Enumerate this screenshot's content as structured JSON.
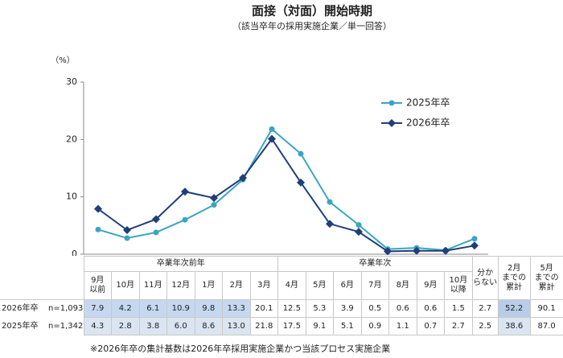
{
  "chart_data": {
    "type": "line",
    "title": "面接（対面）開始時期",
    "subtitle": "（該当卒年の採用実施企業／単一回答）",
    "y_unit": "（%）",
    "ylim": [
      0,
      30
    ],
    "yticks": [
      0,
      10,
      20,
      30
    ],
    "legend": "upper right",
    "groups": [
      {
        "label": "卒業年次前年",
        "categories": [
          "9月\n以前",
          "10月",
          "11月",
          "12月",
          "1月",
          "2月",
          "3月"
        ]
      },
      {
        "label": "卒業年次",
        "categories": [
          "4月",
          "5月",
          "6月",
          "7月",
          "8月",
          "9月",
          "10月\n以降"
        ]
      }
    ],
    "extra_categories": [
      "分か\nらない",
      "2月\nまでの\n累計",
      "5月\nまでの\n累計"
    ],
    "series": [
      {
        "name": "2025年卒",
        "n": "n=1,342",
        "color": "#3aa6c0",
        "marker": "circle",
        "values": [
          4.3,
          2.8,
          3.8,
          6.0,
          8.6,
          13.0,
          21.8,
          17.5,
          9.1,
          5.1,
          0.9,
          1.1,
          0.7,
          2.7
        ],
        "value_labels": [
          "4.3",
          "2.8",
          "3.8",
          "6.0",
          "8.6",
          "13.0",
          "21.8",
          "17.5",
          "9.1",
          "5.1",
          "0.9",
          "1.1",
          "0.7",
          "2.7"
        ],
        "extra_values": [
          2.5,
          38.6,
          87.0
        ],
        "extra_labels": [
          "2.5",
          "38.6",
          "87.0"
        ]
      },
      {
        "name": "2026年卒",
        "n": "n=1,093",
        "color": "#1f3f7a",
        "marker": "diamond",
        "values": [
          7.9,
          4.2,
          6.1,
          10.9,
          9.8,
          13.3,
          20.1,
          12.5,
          5.3,
          3.9,
          0.5,
          0.6,
          0.6,
          1.5
        ],
        "value_labels": [
          "7.9",
          "4.2",
          "6.1",
          "10.9",
          "9.8",
          "13.3",
          "20.1",
          "12.5",
          "5.3",
          "3.9",
          "0.5",
          "0.6",
          "0.6",
          "1.5"
        ],
        "extra_values": [
          2.7,
          52.2,
          90.1
        ],
        "extra_labels": [
          "2.7",
          "52.2",
          "90.1"
        ]
      }
    ],
    "note": "※2026年卒の集計基数は2026年卒採用実施企業かつ当該プロセス実施企業"
  }
}
